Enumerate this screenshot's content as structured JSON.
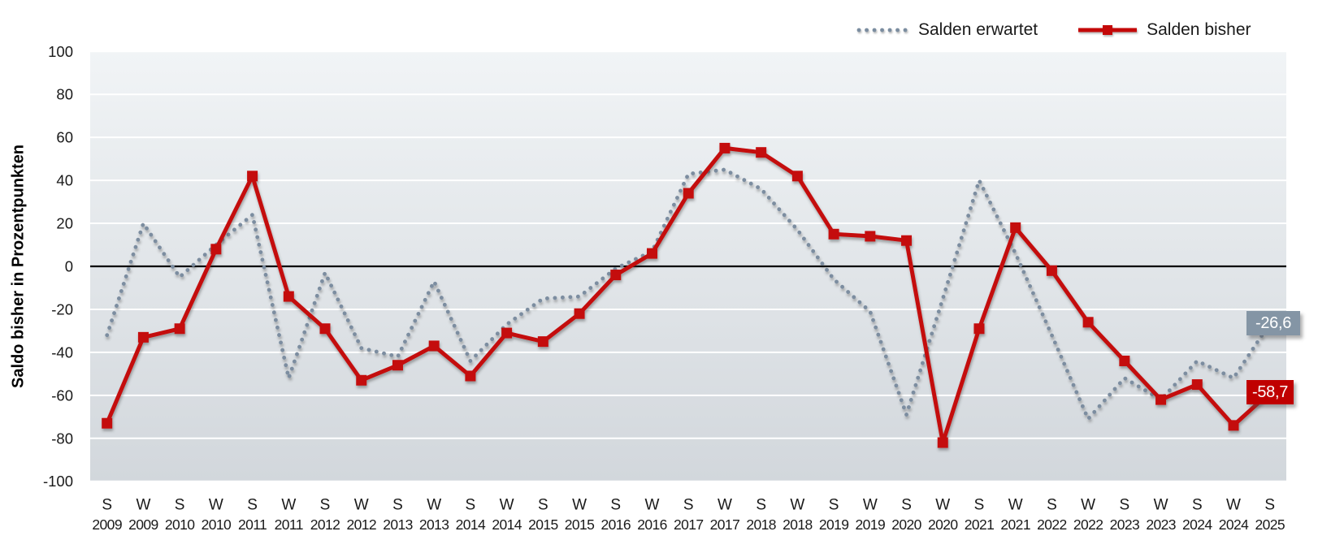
{
  "colors": {
    "series_expected": "#7B8DA0",
    "series_actual": "#C40808",
    "end_label_expected_bg": "#8495A5",
    "end_label_actual_bg": "#C00000",
    "end_label_text": "#FFFFFF",
    "gridline": "#FFFFFF",
    "zero_line": "#000000",
    "plot_bg_top": "#F1F4F6",
    "plot_bg_bottom": "#D2D7DC",
    "axis_text": "#1A1A1A"
  },
  "y_axis": {
    "title": "Saldo bisher in Prozentpunkten",
    "ticks": [
      100,
      80,
      60,
      40,
      20,
      0,
      -20,
      -40,
      -60,
      -80,
      -100
    ]
  },
  "end_labels": {
    "expected": "-26,6",
    "actual": "-58,7"
  },
  "chart_data": {
    "type": "line",
    "title": "",
    "ylabel": "Saldo bisher in Prozentpunkten",
    "ylim": [
      -100,
      100
    ],
    "ytick_step": 20,
    "grid": true,
    "zero_line": true,
    "legend_position": "top-right",
    "categories": [
      {
        "season": "S",
        "year": "2009"
      },
      {
        "season": "W",
        "year": "2009"
      },
      {
        "season": "S",
        "year": "2010"
      },
      {
        "season": "W",
        "year": "2010"
      },
      {
        "season": "S",
        "year": "2011"
      },
      {
        "season": "W",
        "year": "2011"
      },
      {
        "season": "S",
        "year": "2012"
      },
      {
        "season": "W",
        "year": "2012"
      },
      {
        "season": "S",
        "year": "2013"
      },
      {
        "season": "W",
        "year": "2013"
      },
      {
        "season": "S",
        "year": "2014"
      },
      {
        "season": "W",
        "year": "2014"
      },
      {
        "season": "S",
        "year": "2015"
      },
      {
        "season": "W",
        "year": "2015"
      },
      {
        "season": "S",
        "year": "2016"
      },
      {
        "season": "W",
        "year": "2016"
      },
      {
        "season": "S",
        "year": "2017"
      },
      {
        "season": "W",
        "year": "2017"
      },
      {
        "season": "S",
        "year": "2018"
      },
      {
        "season": "W",
        "year": "2018"
      },
      {
        "season": "S",
        "year": "2019"
      },
      {
        "season": "W",
        "year": "2019"
      },
      {
        "season": "S",
        "year": "2020"
      },
      {
        "season": "W",
        "year": "2020"
      },
      {
        "season": "S",
        "year": "2021"
      },
      {
        "season": "W",
        "year": "2021"
      },
      {
        "season": "S",
        "year": "2022"
      },
      {
        "season": "W",
        "year": "2022"
      },
      {
        "season": "S",
        "year": "2023"
      },
      {
        "season": "W",
        "year": "2023"
      },
      {
        "season": "S",
        "year": "2024"
      },
      {
        "season": "W",
        "year": "2024"
      },
      {
        "season": "S",
        "year": "2025"
      }
    ],
    "series": [
      {
        "name": "Salden erwartet",
        "style": "dotted",
        "color": "#7B8DA0",
        "values": [
          -32,
          20,
          -5,
          10,
          24,
          -52,
          -3,
          -38,
          -42,
          -7,
          -44,
          -27,
          -15,
          -14,
          -1,
          7,
          43,
          45,
          36,
          17,
          -6,
          -21,
          -69,
          -15,
          40,
          6,
          -32,
          -71,
          -52,
          -62,
          -44,
          -52,
          -26.6
        ]
      },
      {
        "name": "Salden bisher",
        "style": "solid-square-markers",
        "color": "#C40808",
        "values": [
          -73,
          -33,
          -29,
          8,
          42,
          -14,
          -29,
          -53,
          -46,
          -37,
          -51,
          -31,
          -35,
          -22,
          -4,
          6,
          34,
          55,
          53,
          42,
          15,
          14,
          12,
          -82,
          -29,
          18,
          -2,
          -26,
          -44,
          -62,
          -55,
          -74,
          -58.7
        ]
      }
    ],
    "end_labels": [
      {
        "series": "Salden erwartet",
        "text": "-26,6",
        "value": -26.6
      },
      {
        "series": "Salden bisher",
        "text": "-58,7",
        "value": -58.7
      }
    ]
  }
}
